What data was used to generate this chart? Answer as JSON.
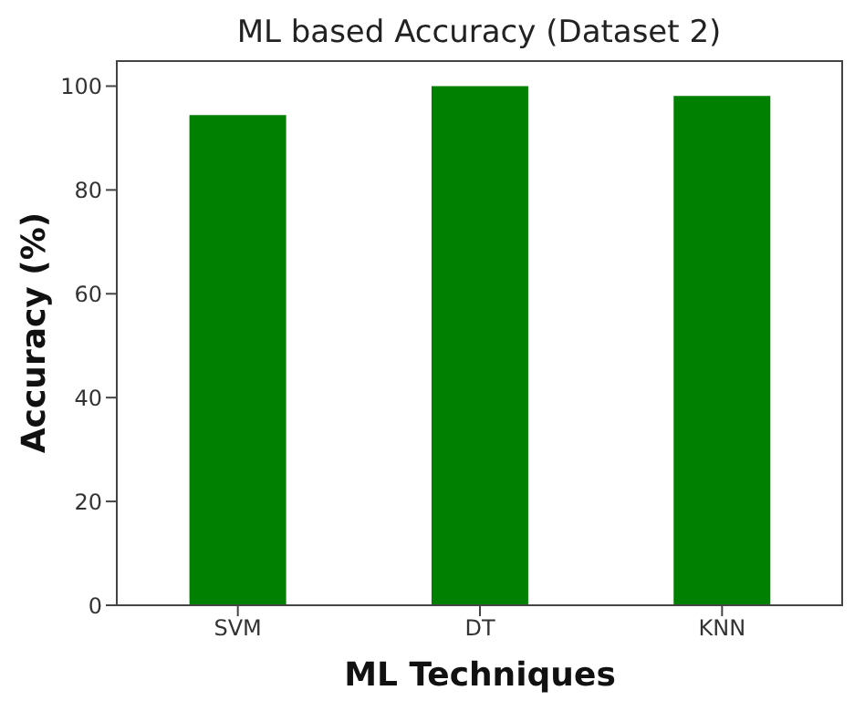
{
  "chart_data": {
    "type": "bar",
    "title": "ML based Accuracy (Dataset 2)",
    "xlabel": "ML Techniques",
    "ylabel": "Accuracy (%)",
    "categories": [
      "SVM",
      "DT",
      "KNN"
    ],
    "values": [
      94.4,
      100,
      98.1
    ],
    "color": "#008000",
    "ylim": [
      0,
      105
    ],
    "yticks": [
      0,
      20,
      40,
      60,
      80,
      100
    ],
    "grid": false
  }
}
